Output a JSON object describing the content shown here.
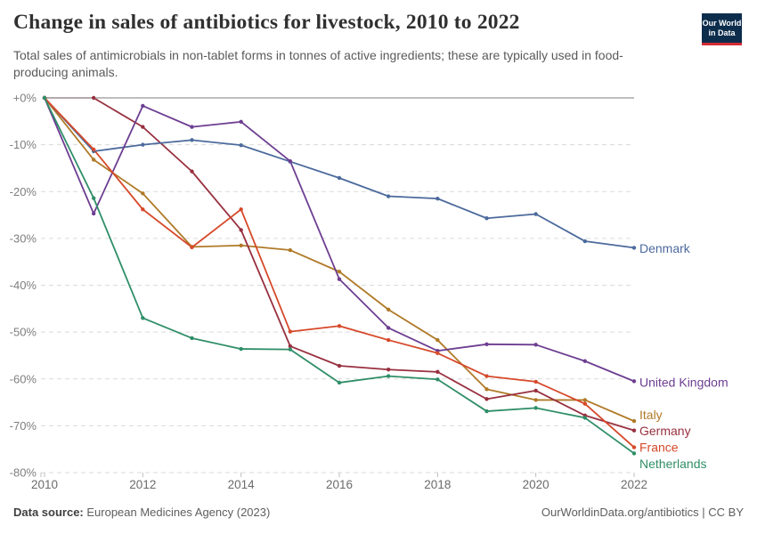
{
  "header": {
    "title": "Change in sales of antibiotics for livestock, 2010 to 2022",
    "subtitle": "Total sales of antimicrobials in non-tablet forms in tonnes of active ingredients; these are typically used in food-producing animals.",
    "logo": {
      "line1": "Our World",
      "line2": "in Data",
      "bg": "#0d2d4d",
      "bar": "#d32b33"
    }
  },
  "chart_data": {
    "type": "line",
    "title": "Change in sales of antibiotics for livestock, 2010 to 2022",
    "unit": "%",
    "ylim": [
      -80,
      0
    ],
    "grid": "dashed-horizontal",
    "legend_position": "right-edge-labels",
    "x": [
      2010,
      2011,
      2012,
      2013,
      2014,
      2015,
      2016,
      2017,
      2018,
      2019,
      2020,
      2021,
      2022
    ],
    "x_ticks": [
      {
        "label": "2010",
        "year": 2010
      },
      {
        "label": "2012",
        "year": 2012
      },
      {
        "label": "2014",
        "year": 2014
      },
      {
        "label": "2016",
        "year": 2016
      },
      {
        "label": "2018",
        "year": 2018
      },
      {
        "label": "2020",
        "year": 2020
      },
      {
        "label": "2022",
        "year": 2022
      }
    ],
    "y_ticks": [
      {
        "label": "+0%",
        "value": 0
      },
      {
        "label": "-10%",
        "value": -10
      },
      {
        "label": "-20%",
        "value": -20
      },
      {
        "label": "-30%",
        "value": -30
      },
      {
        "label": "-40%",
        "value": -40
      },
      {
        "label": "-50%",
        "value": -50
      },
      {
        "label": "-60%",
        "value": -60
      },
      {
        "label": "-70%",
        "value": -70
      },
      {
        "label": "-80%",
        "value": -80
      }
    ],
    "colors": {
      "grid": "#dadada",
      "zero_line": "#b4b4b4",
      "axis_tick": "#bdbdbd"
    },
    "series": [
      {
        "name": "Denmark",
        "slug": "denmark",
        "color": "#4C6A9C",
        "label_y": -32.2,
        "values": [
          0,
          -11.4,
          -10.0,
          -9.0,
          -10.1,
          -13.6,
          -17.1,
          -21.0,
          -21.5,
          -25.7,
          -24.8,
          -30.6,
          -32.0
        ]
      },
      {
        "name": "United Kingdom",
        "slug": "united-kingdom",
        "color": "#6D3E91",
        "label_y": -60.8,
        "values": [
          0,
          -24.7,
          -1.7,
          -6.2,
          -5.1,
          -13.5,
          -38.7,
          -49.1,
          -54.0,
          -52.6,
          -52.7,
          -56.2,
          -60.5
        ]
      },
      {
        "name": "Italy",
        "slug": "italy",
        "color": "#B07A28",
        "label_y": -67.7,
        "values": [
          0,
          -13.2,
          -20.4,
          -31.8,
          -31.5,
          -32.5,
          -37.1,
          -45.2,
          -51.7,
          -62.2,
          -64.5,
          -64.5,
          -69.0
        ]
      },
      {
        "name": "Germany",
        "slug": "germany",
        "color": "#98303F",
        "label_y": -71.2,
        "values": [
          0,
          0,
          -6.2,
          -15.7,
          -28.2,
          -53.0,
          -57.2,
          -58.0,
          -58.5,
          -64.3,
          -62.5,
          -67.8,
          -71.0
        ]
      },
      {
        "name": "France",
        "slug": "france",
        "color": "#D6492A",
        "label_y": -74.7,
        "values": [
          0,
          -11.0,
          -23.8,
          -31.9,
          -23.8,
          -49.9,
          -48.7,
          -51.7,
          -54.5,
          -59.4,
          -60.6,
          -65.3,
          -74.6
        ]
      },
      {
        "name": "Netherlands",
        "slug": "netherlands",
        "color": "#2F8E68",
        "label_y": -78.2,
        "values": [
          0,
          -21.4,
          -47.0,
          -51.3,
          -53.6,
          -53.7,
          -60.8,
          -59.4,
          -60.1,
          -66.9,
          -66.2,
          -68.3,
          -75.9
        ]
      }
    ]
  },
  "footer": {
    "source_bold": "Data source:",
    "source_rest": " European Medicines Agency (2023)",
    "credit": "OurWorldinData.org/antibiotics | CC BY"
  }
}
